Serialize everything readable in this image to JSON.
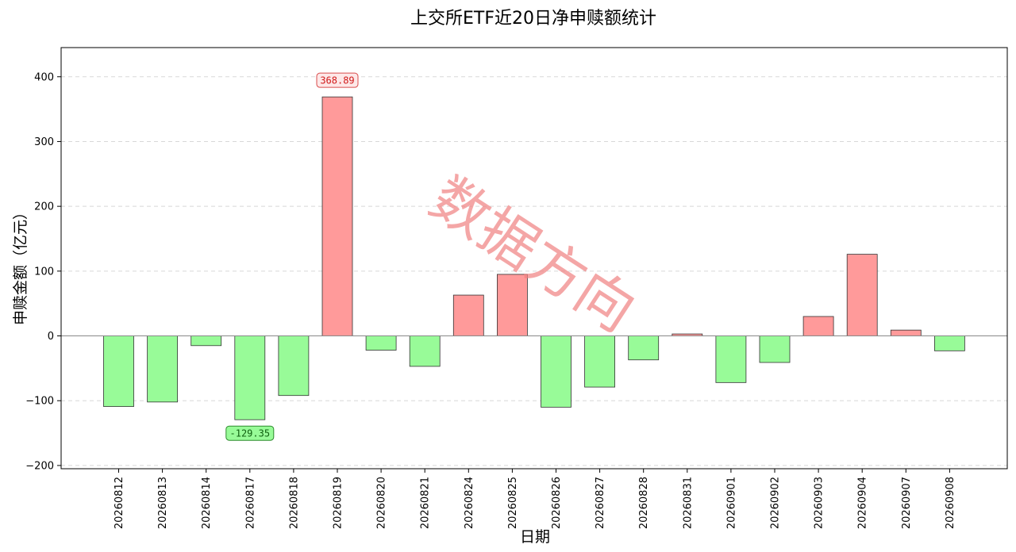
{
  "chart_data": {
    "type": "bar",
    "title": "上交所ETF近20日净申赎额统计",
    "xlabel": "日期",
    "ylabel": "申赎金额（亿元）",
    "ylim": [
      -205,
      445
    ],
    "yticks": [
      -200,
      -100,
      0,
      100,
      200,
      300,
      400
    ],
    "ytick_labels": [
      "−200",
      "−100",
      "0",
      "100",
      "200",
      "300",
      "400"
    ],
    "grid": true,
    "categories": [
      "20260812",
      "20260813",
      "20260814",
      "20260817",
      "20260818",
      "20260819",
      "20260820",
      "20260821",
      "20260824",
      "20260825",
      "20260826",
      "20260827",
      "20260828",
      "20260831",
      "20260901",
      "20260902",
      "20260903",
      "20260904",
      "20260907",
      "20260908"
    ],
    "values": [
      -109,
      -102,
      -15,
      -129.35,
      -92,
      368.89,
      -22,
      -47,
      63,
      95,
      -110,
      -79,
      -37,
      3,
      -72,
      -41,
      30,
      126,
      9,
      -23
    ],
    "annotations": [
      {
        "index": 5,
        "text": "368.89",
        "kind": "max"
      },
      {
        "index": 3,
        "text": "-129.35",
        "kind": "min"
      }
    ],
    "colors": {
      "positive": "#ff9a9a",
      "negative": "#98fb98",
      "max_label_text": "#d11a1a",
      "max_label_fill": "#fde8e8",
      "max_label_border": "#d94c4c",
      "min_label_text": "#106010",
      "min_label_fill": "#98fb98",
      "min_label_border": "#2e8b2e",
      "watermark": "#f08080"
    },
    "watermark": "数据方向"
  }
}
